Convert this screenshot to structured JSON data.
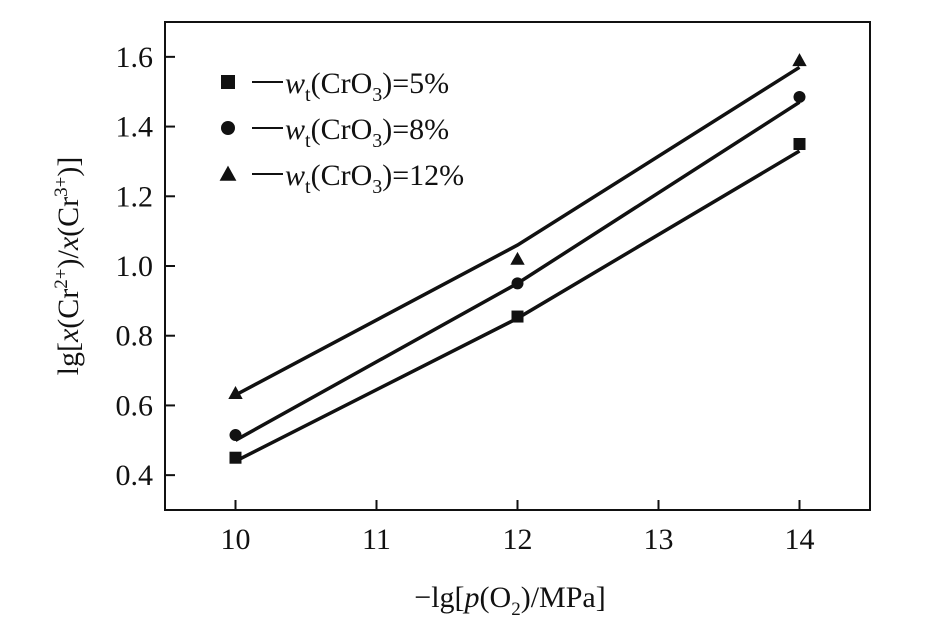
{
  "chart_data": {
    "type": "line",
    "xlabel": "−lg[p(O2)/MPa]",
    "ylabel": "lg[x(Cr2+)/x(Cr3+)]",
    "xlim": [
      9.5,
      14.5
    ],
    "ylim": [
      0.3,
      1.7
    ],
    "xticks": [
      10,
      11,
      12,
      13,
      14
    ],
    "yticks": [
      0.4,
      0.6,
      0.8,
      1.0,
      1.2,
      1.4,
      1.6
    ],
    "xtick_labels": [
      "10",
      "11",
      "12",
      "13",
      "14"
    ],
    "ytick_labels": [
      "0.4",
      "0.6",
      "0.8",
      "1.0",
      "1.2",
      "1.4",
      "1.6"
    ],
    "grid": false,
    "legend_position": "top-left",
    "series": [
      {
        "name": "wt(CrO3)=5%",
        "marker": "square",
        "points": [
          [
            10,
            0.45
          ],
          [
            12,
            0.855
          ],
          [
            14,
            1.35
          ]
        ],
        "fit": [
          [
            10,
            0.44
          ],
          [
            12,
            0.85
          ],
          [
            14,
            1.33
          ]
        ]
      },
      {
        "name": "wt(CrO3)=8%",
        "marker": "circle",
        "points": [
          [
            10,
            0.515
          ],
          [
            12,
            0.95
          ],
          [
            14,
            1.485
          ]
        ],
        "fit": [
          [
            10,
            0.5
          ],
          [
            12,
            0.95
          ],
          [
            14,
            1.47
          ]
        ]
      },
      {
        "name": "wt(CrO3)=12%",
        "marker": "triangle",
        "points": [
          [
            10,
            0.635
          ],
          [
            12,
            1.02
          ],
          [
            14,
            1.59
          ]
        ],
        "fit": [
          [
            10,
            0.63
          ],
          [
            12,
            1.06
          ],
          [
            14,
            1.57
          ]
        ]
      }
    ],
    "color": "#111111"
  }
}
